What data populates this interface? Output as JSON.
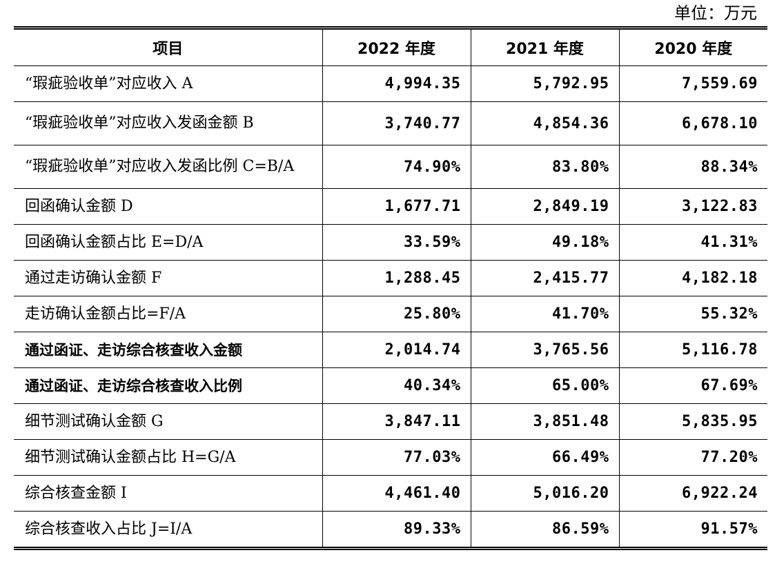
{
  "unit_label": "单位：万元",
  "columns": [
    "项目",
    "2022 年度",
    "2021 年度",
    "2020 年度"
  ],
  "rows": [
    {
      "label": "“瑕疵验收单”对应收入 A",
      "bold": false,
      "values": [
        "4,994.35",
        "5,792.95",
        "7,559.69"
      ]
    },
    {
      "label": "“瑕疵验收单”对应收入发函金额 B",
      "bold": false,
      "values": [
        "3,740.77",
        "4,854.36",
        "6,678.10"
      ]
    },
    {
      "label": "“瑕疵验收单”对应收入发函比例 C=B/A",
      "bold": false,
      "values": [
        "74.90%",
        "83.80%",
        "88.34%"
      ]
    },
    {
      "label": "回函确认金额 D",
      "bold": false,
      "values": [
        "1,677.71",
        "2,849.19",
        "3,122.83"
      ]
    },
    {
      "label": "回函确认金额占比 E=D/A",
      "bold": false,
      "values": [
        "33.59%",
        "49.18%",
        "41.31%"
      ]
    },
    {
      "label": "通过走访确认金额 F",
      "bold": false,
      "values": [
        "1,288.45",
        "2,415.77",
        "4,182.18"
      ]
    },
    {
      "label": "走访确认金额占比=F/A",
      "bold": false,
      "values": [
        "25.80%",
        "41.70%",
        "55.32%"
      ]
    },
    {
      "label": "通过函证、走访综合核查收入金额",
      "bold": true,
      "values": [
        "2,014.74",
        "3,765.56",
        "5,116.78"
      ]
    },
    {
      "label": "通过函证、走访综合核查收入比例",
      "bold": true,
      "values": [
        "40.34%",
        "65.00%",
        "67.69%"
      ]
    },
    {
      "label": "细节测试确认金额 G",
      "bold": false,
      "values": [
        "3,847.11",
        "3,851.48",
        "5,835.95"
      ]
    },
    {
      "label": "细节测试确认金额占比 H=G/A",
      "bold": false,
      "values": [
        "77.03%",
        "66.49%",
        "77.20%"
      ]
    },
    {
      "label": "综合核查金额 I",
      "bold": false,
      "values": [
        "4,461.40",
        "5,016.20",
        "6,922.24"
      ]
    },
    {
      "label": "综合核查收入占比 J=I/A",
      "bold": false,
      "values": [
        "89.33%",
        "86.59%",
        "91.57%"
      ]
    }
  ]
}
